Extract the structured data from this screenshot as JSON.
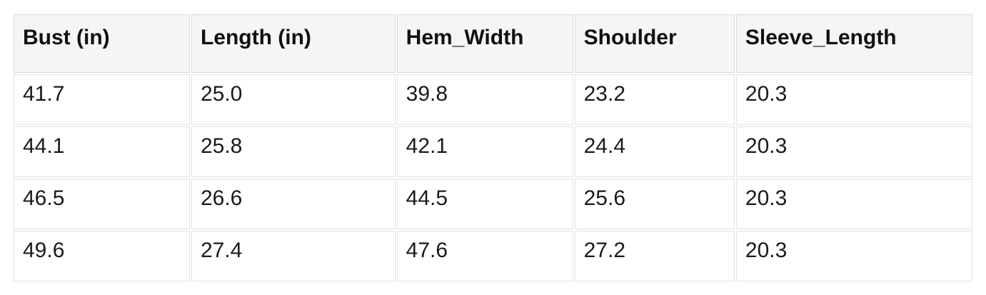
{
  "table": {
    "columns": [
      "Bust (in)",
      "Length (in)",
      "Hem_Width",
      "Shoulder",
      "Sleeve_Length"
    ],
    "rows": [
      [
        "41.7",
        "25.0",
        "39.8",
        "23.2",
        "20.3"
      ],
      [
        "44.1",
        "25.8",
        "42.1",
        "24.4",
        "20.3"
      ],
      [
        "46.5",
        "26.6",
        "44.5",
        "25.6",
        "20.3"
      ],
      [
        "49.6",
        "27.4",
        "47.6",
        "27.2",
        "20.3"
      ]
    ]
  },
  "colors": {
    "header_bg": "#f5f5f5",
    "header_border": "#d9d9d9",
    "cell_border": "#e2e2e2",
    "text": "#1a1a1a",
    "page_bg": "#ffffff"
  },
  "chart_data": {
    "type": "table",
    "title": "",
    "columns": [
      "Bust (in)",
      "Length (in)",
      "Hem_Width",
      "Shoulder",
      "Sleeve_Length"
    ],
    "rows": [
      [
        41.7,
        25.0,
        39.8,
        23.2,
        20.3
      ],
      [
        44.1,
        25.8,
        42.1,
        24.4,
        20.3
      ],
      [
        46.5,
        26.6,
        44.5,
        25.6,
        20.3
      ],
      [
        49.6,
        27.4,
        47.6,
        27.2,
        20.3
      ]
    ]
  }
}
